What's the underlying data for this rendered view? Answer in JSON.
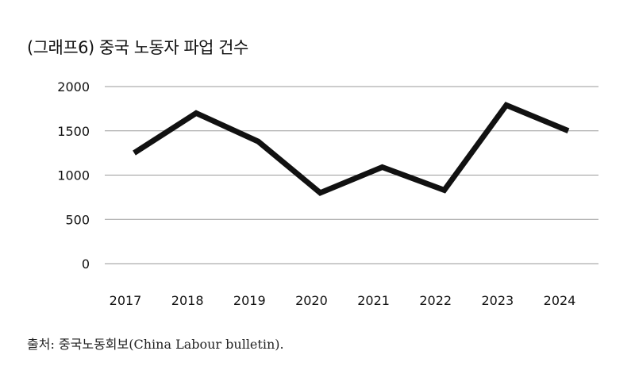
{
  "chart_data": {
    "type": "line",
    "title": "(그래프6) 중국 노동자 파업 건수",
    "x": [
      "2017",
      "2018",
      "2019",
      "2020",
      "2021",
      "2022",
      "2023",
      "2024"
    ],
    "series": [
      {
        "values": [
          1250,
          1700,
          1380,
          800,
          1090,
          830,
          1790,
          1500
        ]
      }
    ],
    "yticks": [
      "0",
      "500",
      "1000",
      "1500",
      "2000"
    ],
    "ylim": [
      0,
      2000
    ],
    "grid": true,
    "line_color": "#111111",
    "grid_color": "#9a9a9a",
    "source": "출처: 중국노동회보(China Labour bulletin)."
  }
}
